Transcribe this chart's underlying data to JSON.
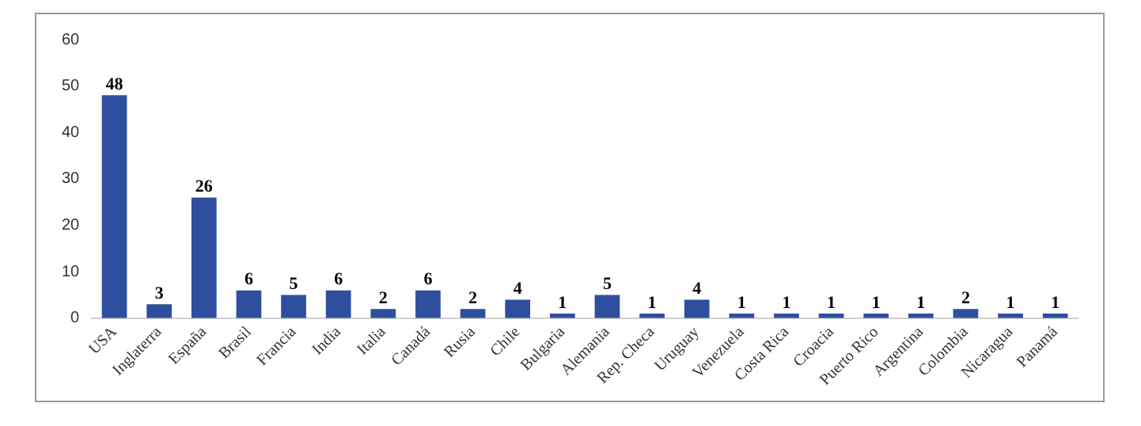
{
  "chart_data": {
    "type": "bar",
    "categories": [
      "USA",
      "Inglaterra",
      "España",
      "Brasil",
      "Francia",
      "India",
      "Italia",
      "Canadá",
      "Rusia",
      "Chile",
      "Bulgaria",
      "Alemania",
      "Rep. Checa",
      "Uruguay",
      "Venezuela",
      "Costa Rica",
      "Croacia",
      "Puerto Rico",
      "Argentina",
      "Colombia",
      "Nicaragua",
      "Panamá"
    ],
    "values": [
      48,
      3,
      26,
      6,
      5,
      6,
      2,
      6,
      2,
      4,
      1,
      5,
      1,
      4,
      1,
      1,
      1,
      1,
      1,
      2,
      1,
      1
    ],
    "color": "#2e4e9e",
    "ylim": [
      0,
      60
    ],
    "yticks": [
      0,
      10,
      20,
      30,
      40,
      50,
      60
    ],
    "grid": false,
    "data_labels": true,
    "legend": false
  }
}
